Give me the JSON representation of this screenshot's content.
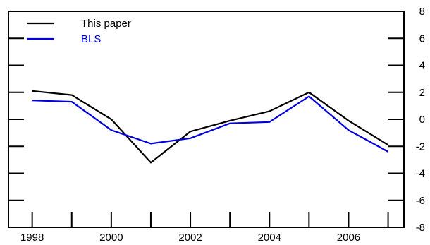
{
  "chart_data": {
    "type": "line",
    "x": [
      1997.6,
      1998.6,
      1999.6,
      2000.6,
      2001.6,
      2002.6,
      2003.6,
      2004.6,
      2005.6,
      2006.6
    ],
    "series": [
      {
        "name": "This paper",
        "values": [
          2.1,
          1.8,
          0.0,
          -3.2,
          -0.9,
          -0.1,
          0.6,
          2.0,
          -0.1,
          -1.9
        ],
        "color": "#000000"
      },
      {
        "name": "BLS",
        "values": [
          1.4,
          1.3,
          -0.8,
          -1.8,
          -1.4,
          -0.3,
          -0.2,
          1.7,
          -0.8,
          -2.4
        ],
        "color": "#0000dd"
      }
    ],
    "xticks": [
      "1998",
      "2000",
      "2002",
      "2004",
      "2006"
    ],
    "yticks": [
      "8",
      "6",
      "4",
      "2",
      "0",
      "-2",
      "-4",
      "-6",
      "-8"
    ],
    "xlim": [
      1997,
      2007
    ],
    "ylim": [
      -8,
      8
    ],
    "yaxis_side": "both, labels right",
    "grid": false,
    "legend_position": "top-left"
  }
}
